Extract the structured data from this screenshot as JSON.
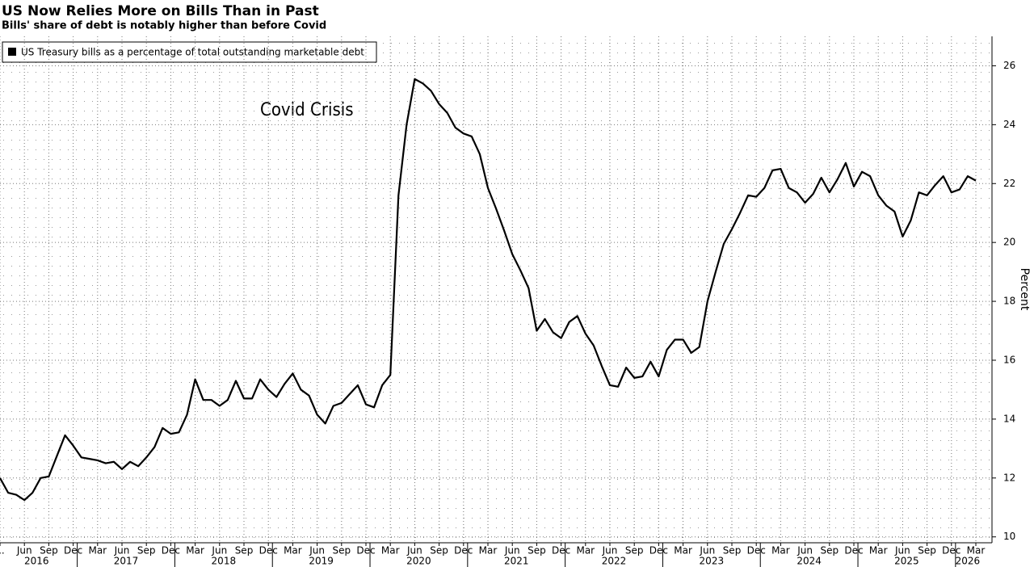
{
  "chart_data": {
    "type": "line",
    "title": "US Now Relies More on Bills Than in Past",
    "subtitle": "Bills' share of debt is notably higher than before Covid",
    "annotation": "Covid Crisis",
    "y_axis_label": "Percent",
    "x": [
      "2016-03",
      "2016-04",
      "2016-05",
      "2016-06",
      "2016-07",
      "2016-08",
      "2016-09",
      "2016-10",
      "2016-11",
      "2016-12",
      "2017-01",
      "2017-02",
      "2017-03",
      "2017-04",
      "2017-05",
      "2017-06",
      "2017-07",
      "2017-08",
      "2017-09",
      "2017-10",
      "2017-11",
      "2017-12",
      "2018-01",
      "2018-02",
      "2018-03",
      "2018-04",
      "2018-05",
      "2018-06",
      "2018-07",
      "2018-08",
      "2018-09",
      "2018-10",
      "2018-11",
      "2018-12",
      "2019-01",
      "2019-02",
      "2019-03",
      "2019-04",
      "2019-05",
      "2019-06",
      "2019-07",
      "2019-08",
      "2019-09",
      "2019-10",
      "2019-11",
      "2019-12",
      "2020-01",
      "2020-02",
      "2020-03",
      "2020-04",
      "2020-05",
      "2020-06",
      "2020-07",
      "2020-08",
      "2020-09",
      "2020-10",
      "2020-11",
      "2020-12",
      "2021-01",
      "2021-02",
      "2021-03",
      "2021-04",
      "2021-05",
      "2021-06",
      "2021-07",
      "2021-08",
      "2021-09",
      "2021-10",
      "2021-11",
      "2021-12",
      "2022-01",
      "2022-02",
      "2022-03",
      "2022-04",
      "2022-05",
      "2022-06",
      "2022-07",
      "2022-08",
      "2022-09",
      "2022-10",
      "2022-11",
      "2022-12",
      "2023-01",
      "2023-02",
      "2023-03",
      "2023-04",
      "2023-05",
      "2023-06",
      "2023-07",
      "2023-08",
      "2023-09",
      "2023-10",
      "2023-11",
      "2023-12",
      "2024-01",
      "2024-02",
      "2024-03",
      "2024-04",
      "2024-05",
      "2024-06",
      "2024-07",
      "2024-08",
      "2024-09",
      "2024-10",
      "2024-11",
      "2024-12",
      "2025-01",
      "2025-02",
      "2025-03",
      "2025-04",
      "2025-05",
      "2025-06",
      "2025-07",
      "2025-08",
      "2025-09",
      "2025-10",
      "2025-11",
      "2025-12",
      "2026-01",
      "2026-02",
      "2026-03"
    ],
    "series": [
      {
        "name": "US Treasury bills as a percentage of total outstanding marketable debt",
        "color": "#000000",
        "values": [
          12.0,
          11.5,
          11.43,
          11.25,
          11.5,
          12.0,
          12.05,
          12.75,
          13.45,
          13.1,
          12.7,
          12.65,
          12.6,
          12.5,
          12.55,
          12.3,
          12.55,
          12.4,
          12.7,
          13.05,
          13.7,
          13.5,
          13.55,
          14.15,
          15.35,
          14.65,
          14.65,
          14.45,
          14.65,
          15.3,
          14.7,
          14.7,
          15.35,
          15.0,
          14.75,
          15.2,
          15.55,
          15.0,
          14.8,
          14.15,
          13.85,
          14.45,
          14.55,
          14.85,
          15.15,
          14.5,
          14.4,
          15.15,
          15.5,
          21.6,
          24.0,
          25.55,
          25.4,
          25.15,
          24.7,
          24.4,
          23.9,
          23.7,
          23.6,
          23.0,
          21.85,
          21.15,
          20.4,
          19.6,
          19.05,
          18.45,
          17.0,
          17.4,
          16.95,
          16.75,
          17.3,
          17.5,
          16.9,
          16.5,
          15.8,
          15.15,
          15.1,
          15.75,
          15.4,
          15.45,
          15.95,
          15.45,
          16.35,
          16.7,
          16.7,
          16.25,
          16.45,
          18.0,
          19.0,
          19.95,
          20.45,
          21.0,
          21.6,
          21.55,
          21.85,
          22.45,
          22.5,
          21.85,
          21.7,
          21.35,
          21.65,
          22.2,
          21.7,
          22.15,
          22.7,
          21.9,
          22.4,
          22.25,
          21.6,
          21.25,
          21.05,
          20.2,
          20.75,
          21.7,
          21.6,
          21.95,
          22.25,
          21.7,
          21.8,
          22.25,
          22.1
        ]
      }
    ],
    "xticks": [
      {
        "value": "2016-03",
        "label": "..."
      },
      {
        "value": "2016-06",
        "label": "Jun"
      },
      {
        "value": "2016-09",
        "label": "Sep"
      },
      {
        "value": "2016-12",
        "label": "Dec"
      },
      {
        "value": "2017-03",
        "label": "Mar"
      },
      {
        "value": "2017-06",
        "label": "Jun"
      },
      {
        "value": "2017-09",
        "label": "Sep"
      },
      {
        "value": "2017-12",
        "label": "Dec"
      },
      {
        "value": "2018-03",
        "label": "Mar"
      },
      {
        "value": "2018-06",
        "label": "Jun"
      },
      {
        "value": "2018-09",
        "label": "Sep"
      },
      {
        "value": "2018-12",
        "label": "Dec"
      },
      {
        "value": "2019-03",
        "label": "Mar"
      },
      {
        "value": "2019-06",
        "label": "Jun"
      },
      {
        "value": "2019-09",
        "label": "Sep"
      },
      {
        "value": "2019-12",
        "label": "Dec"
      },
      {
        "value": "2020-03",
        "label": "Mar"
      },
      {
        "value": "2020-06",
        "label": "Jun"
      },
      {
        "value": "2020-09",
        "label": "Sep"
      },
      {
        "value": "2020-12",
        "label": "Dec"
      },
      {
        "value": "2021-03",
        "label": "Mar"
      },
      {
        "value": "2021-06",
        "label": "Jun"
      },
      {
        "value": "2021-09",
        "label": "Sep"
      },
      {
        "value": "2021-12",
        "label": "Dec"
      },
      {
        "value": "2022-03",
        "label": "Mar"
      },
      {
        "value": "2022-06",
        "label": "Jun"
      },
      {
        "value": "2022-09",
        "label": "Sep"
      },
      {
        "value": "2022-12",
        "label": "Dec"
      },
      {
        "value": "2023-03",
        "label": "Mar"
      },
      {
        "value": "2023-06",
        "label": "Jun"
      },
      {
        "value": "2023-09",
        "label": "Sep"
      },
      {
        "value": "2023-12",
        "label": "Dec"
      },
      {
        "value": "2024-03",
        "label": "Mar"
      },
      {
        "value": "2024-06",
        "label": "Jun"
      },
      {
        "value": "2024-09",
        "label": "Sep"
      },
      {
        "value": "2024-12",
        "label": "Dec"
      },
      {
        "value": "2025-03",
        "label": "Mar"
      },
      {
        "value": "2025-06",
        "label": "Jun"
      },
      {
        "value": "2025-09",
        "label": "Sep"
      },
      {
        "value": "2025-12",
        "label": "Dec"
      },
      {
        "value": "2026-03",
        "label": "Mar"
      }
    ],
    "years": [
      "2016",
      "2017",
      "2018",
      "2019",
      "2020",
      "2021",
      "2022",
      "2023",
      "2024",
      "2025",
      "2026"
    ],
    "ylim": [
      9.8,
      27.0
    ],
    "yticks": [
      10,
      12,
      14,
      16,
      18,
      20,
      22,
      24,
      26
    ],
    "grid": true,
    "legend": "upper left"
  }
}
